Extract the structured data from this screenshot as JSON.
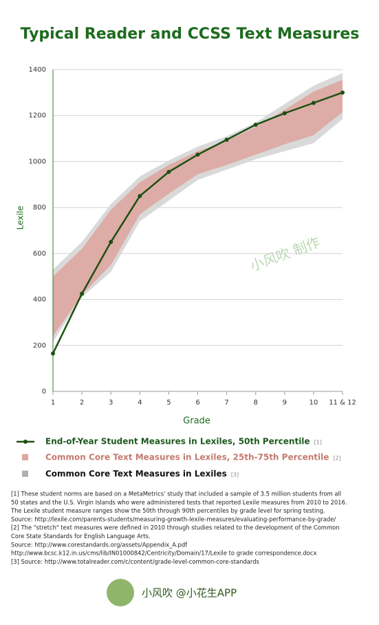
{
  "chart_data": {
    "type": "line",
    "title": "Typical Reader and CCSS Text Measures",
    "x_label": "Grade",
    "y_label": "Lexile",
    "categories": [
      "1",
      "2",
      "3",
      "4",
      "5",
      "6",
      "7",
      "8",
      "9",
      "10",
      "11 & 12"
    ],
    "ylim": [
      0,
      1400
    ],
    "yticks": [
      0,
      200,
      400,
      600,
      800,
      1000,
      1200,
      1400
    ],
    "grid": true,
    "bands": [
      {
        "name": "Common Core Text Measures in Lexiles",
        "note": "[3]",
        "color": "#d9d9d9",
        "text_color": "#111111",
        "low": [
          215,
          410,
          520,
          740,
          830,
          920,
          965,
          1010,
          1045,
          1080,
          1185
        ],
        "high": [
          530,
          650,
          815,
          935,
          1005,
          1065,
          1110,
          1170,
          1250,
          1330,
          1385
        ]
      },
      {
        "name": "Common Core Text Measures in Lexiles, 25th-75th Percentile",
        "note": "[2]",
        "color": "#ddaca6",
        "text_color": "#c47a70",
        "low": [
          240,
          420,
          550,
          770,
          860,
          945,
          985,
          1030,
          1075,
          1115,
          1215
        ],
        "high": [
          500,
          620,
          790,
          910,
          985,
          1045,
          1090,
          1150,
          1225,
          1305,
          1355
        ]
      }
    ],
    "series": [
      {
        "name": "End-of-Year Student Measures in Lexiles, 50th Percentile",
        "note": "[1]",
        "color": "#1d4f12",
        "text_color": "#1d5a1d",
        "values": [
          165,
          425,
          650,
          850,
          955,
          1030,
          1095,
          1160,
          1210,
          1255,
          1300
        ]
      }
    ]
  },
  "footnotes": [
    "[1] These student norms are based on a MetaMetrics' study that included a sample of 3.5 million students from all",
    "50 states and the U.S. Virgin Islands who were administered tests that reported Lexile measures from 2010 to 2016.",
    "The Lexile student measure ranges show the 50th through 90th percentiles by grade level for spring testing.",
    "Source: http://lexile.com/parents-students/measuring-growth-lexile-measures/evaluating-performance-by-grade/",
    "[2] The \"stretch\" text measures were defined in 2010 through studies related to the development of the Common",
    "Core State Standards for English Language Arts.",
    "Source: http://www.corestandards.org/assets/Appendix_A.pdf",
    "http://www.bcsc.k12.in.us/cms/lib/IN01000842/Centricity/Domain/17/Lexile to grade correspondence.docx",
    "[3] Source: http://www.totalreader.com/c/content/grade-level-common-core-standards"
  ],
  "watermark": "小风吹 制作",
  "footer": "小风吹 @小花生APP"
}
